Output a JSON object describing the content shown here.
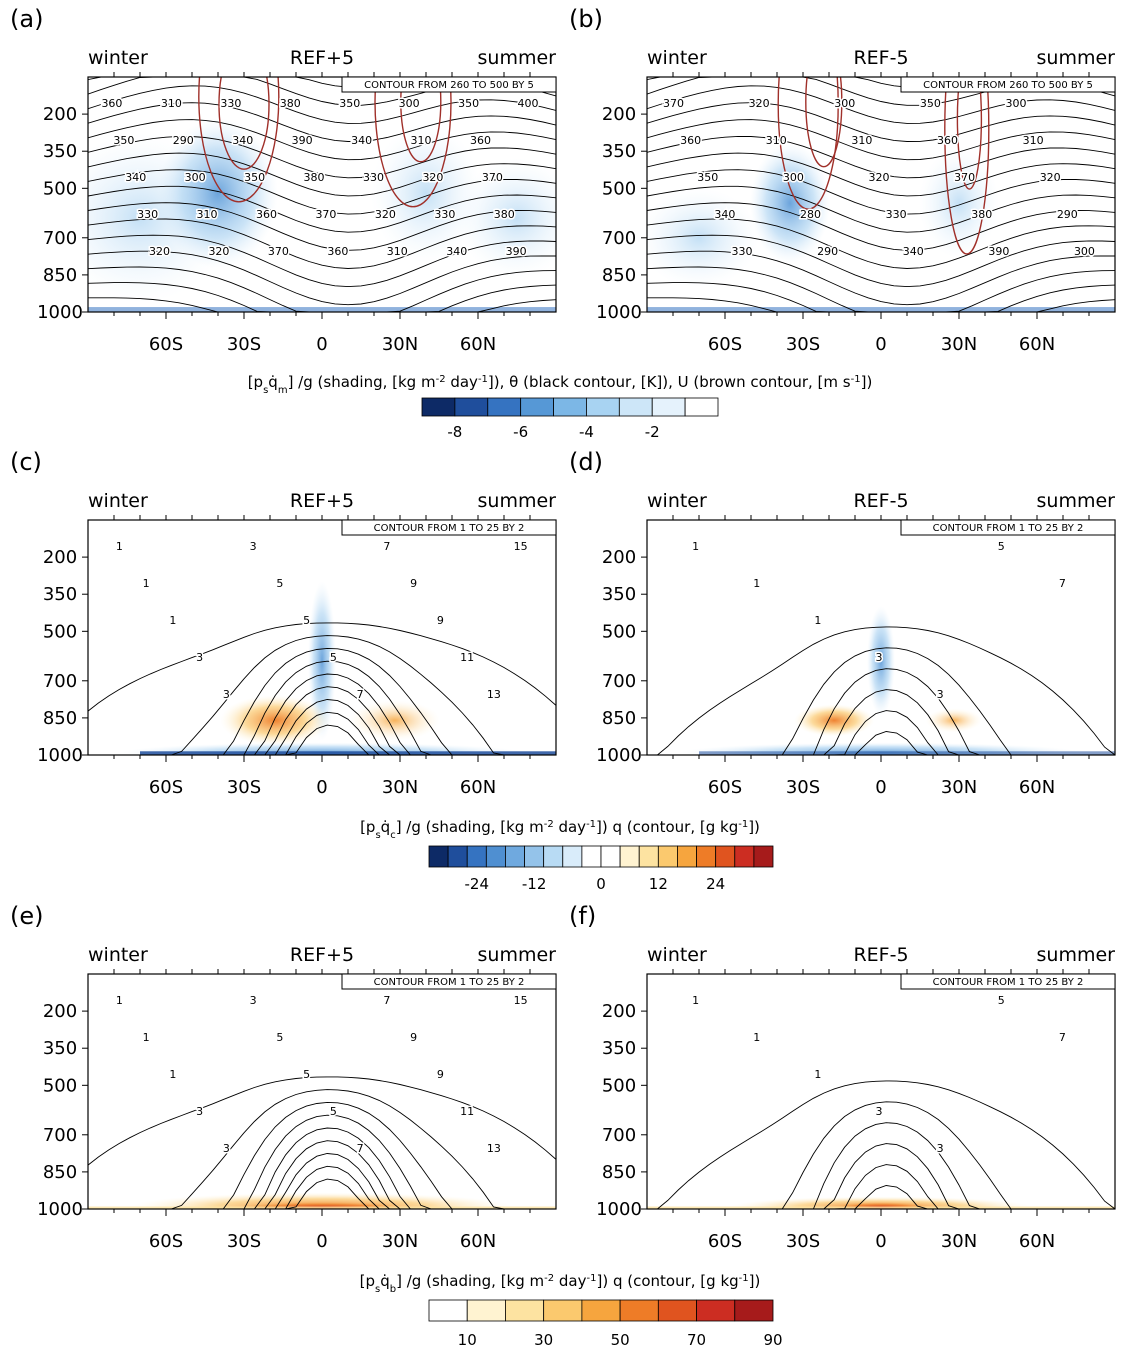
{
  "chart_data": [
    {
      "type": "contour",
      "panel_label": "(a)",
      "title": "REF+5",
      "left_label": "winter",
      "right_label": "summer",
      "contour_info": "CONTOUR FROM 260 TO 500 BY 5",
      "x_ticks": [
        "60S",
        "30S",
        "0",
        "30N",
        "60N"
      ],
      "y_ticks": [
        "200",
        "350",
        "500",
        "700",
        "850",
        "1000"
      ],
      "contour_labels": [
        "360",
        "350",
        "340",
        "330",
        "320",
        "310",
        "290",
        "300",
        "310",
        "320",
        "330",
        "340",
        "350",
        "360",
        "370",
        "380",
        "390",
        "380",
        "370",
        "360",
        "350",
        "340",
        "330",
        "320",
        "310",
        "300",
        "310",
        "320",
        "330",
        "340",
        "350",
        "360",
        "370",
        "380",
        "390",
        "400"
      ],
      "shading": "negative"
    },
    {
      "type": "contour",
      "panel_label": "(b)",
      "title": "REF-5",
      "left_label": "winter",
      "right_label": "summer",
      "contour_info": "CONTOUR FROM 260 TO 500 BY 5",
      "x_ticks": [
        "60S",
        "30S",
        "0",
        "30N",
        "60N"
      ],
      "y_ticks": [
        "200",
        "350",
        "500",
        "700",
        "850",
        "1000"
      ],
      "contour_labels": [
        "370",
        "360",
        "350",
        "340",
        "330",
        "320",
        "310",
        "300",
        "280",
        "290",
        "300",
        "310",
        "320",
        "330",
        "340",
        "350",
        "360",
        "370",
        "380",
        "390",
        "300",
        "310",
        "320",
        "290",
        "300"
      ],
      "shading": "negative"
    },
    {
      "type": "contour",
      "panel_label": "(c)",
      "title": "REF+5",
      "left_label": "winter",
      "right_label": "summer",
      "contour_info": "CONTOUR FROM 1 TO 25 BY 2",
      "x_ticks": [
        "60S",
        "30S",
        "0",
        "30N",
        "60N"
      ],
      "y_ticks": [
        "200",
        "350",
        "500",
        "700",
        "850",
        "1000"
      ],
      "contour_labels": [
        "1",
        "1",
        "1",
        "3",
        "3",
        "3",
        "5",
        "5",
        "5",
        "7",
        "7",
        "9",
        "9",
        "11",
        "13",
        "15"
      ],
      "shading": "diverging"
    },
    {
      "type": "contour",
      "panel_label": "(d)",
      "title": "REF-5",
      "left_label": "winter",
      "right_label": "summer",
      "contour_info": "CONTOUR FROM 1 TO 25 BY 2",
      "x_ticks": [
        "60S",
        "30S",
        "0",
        "30N",
        "60N"
      ],
      "y_ticks": [
        "200",
        "350",
        "500",
        "700",
        "850",
        "1000"
      ],
      "contour_labels": [
        "1",
        "1",
        "1",
        "3",
        "3",
        "5",
        "7"
      ],
      "shading": "diverging"
    },
    {
      "type": "contour",
      "panel_label": "(e)",
      "title": "REF+5",
      "left_label": "winter",
      "right_label": "summer",
      "contour_info": "CONTOUR FROM 1 TO 25 BY 2",
      "x_ticks": [
        "60S",
        "30S",
        "0",
        "30N",
        "60N"
      ],
      "y_ticks": [
        "200",
        "350",
        "500",
        "700",
        "850",
        "1000"
      ],
      "contour_labels": [
        "1",
        "1",
        "1",
        "3",
        "3",
        "3",
        "5",
        "5",
        "5",
        "7",
        "7",
        "9",
        "9",
        "11",
        "13",
        "15"
      ],
      "shading": "positive"
    },
    {
      "type": "contour",
      "panel_label": "(f)",
      "title": "REF-5",
      "left_label": "winter",
      "right_label": "summer",
      "contour_info": "CONTOUR FROM 1 TO 25 BY 2",
      "x_ticks": [
        "60S",
        "30S",
        "0",
        "30N",
        "60N"
      ],
      "y_ticks": [
        "200",
        "350",
        "500",
        "700",
        "850",
        "1000"
      ],
      "contour_labels": [
        "1",
        "1",
        "1",
        "3",
        "3",
        "5",
        "7"
      ],
      "shading": "positive"
    }
  ],
  "captions": [
    {
      "prefix": "[p",
      "sub1": "s",
      "mid": "q̇",
      "sub2": "m",
      "rest": "] /g  (shading, [kg m",
      "sup1": "-2",
      "rest2": " day",
      "sup2": "-1",
      "rest3": "]),  θ (black contour, [K]),  U (brown contour, [m s",
      "sup3": "-1",
      "rest4": "])"
    },
    {
      "prefix": "[p",
      "sub1": "s",
      "mid": "q̇",
      "sub2": "c",
      "rest": "] /g  (shading, [kg m",
      "sup1": "-2",
      "rest2": " day",
      "sup2": "-1",
      "rest3": "])  q (contour, [g kg",
      "sup3": "-1",
      "rest4": "])"
    },
    {
      "prefix": "[p",
      "sub1": "s",
      "mid": "q̇",
      "sub2": "b",
      "rest": "] /g  (shading, [kg m",
      "sup1": "-2",
      "rest2": " day",
      "sup2": "-1",
      "rest3": "])  q (contour, [g kg",
      "sup3": "-1",
      "rest4": "])"
    }
  ],
  "colorbars": [
    {
      "labels": [
        "-8",
        "-6",
        "-4",
        "-2"
      ],
      "colors": [
        "#0d2a66",
        "#1f4e9c",
        "#3573c1",
        "#5698d6",
        "#7cb7e6",
        "#a8d3f2",
        "#cde6f8",
        "#e5f2fc",
        "#ffffff"
      ]
    },
    {
      "labels": [
        "-24",
        "-12",
        "0",
        "12",
        "24"
      ],
      "colors": [
        "#0d2a66",
        "#1f4e9c",
        "#3573c1",
        "#4f8fd1",
        "#6fa9df",
        "#94c3ea",
        "#b8dbf4",
        "#d9ecfa",
        "#ffffff",
        "#ffffff",
        "#fff3d1",
        "#fde3a1",
        "#fbc96e",
        "#f6a53e",
        "#ee7c27",
        "#e0541f",
        "#cc2d22",
        "#a61b1b"
      ]
    },
    {
      "labels": [
        "10",
        "30",
        "50",
        "70",
        "90"
      ],
      "colors": [
        "#ffffff",
        "#fff3d1",
        "#fde3a1",
        "#fbc96e",
        "#f6a53e",
        "#ee7c27",
        "#e0541f",
        "#cc2d22",
        "#a61b1b"
      ]
    }
  ]
}
